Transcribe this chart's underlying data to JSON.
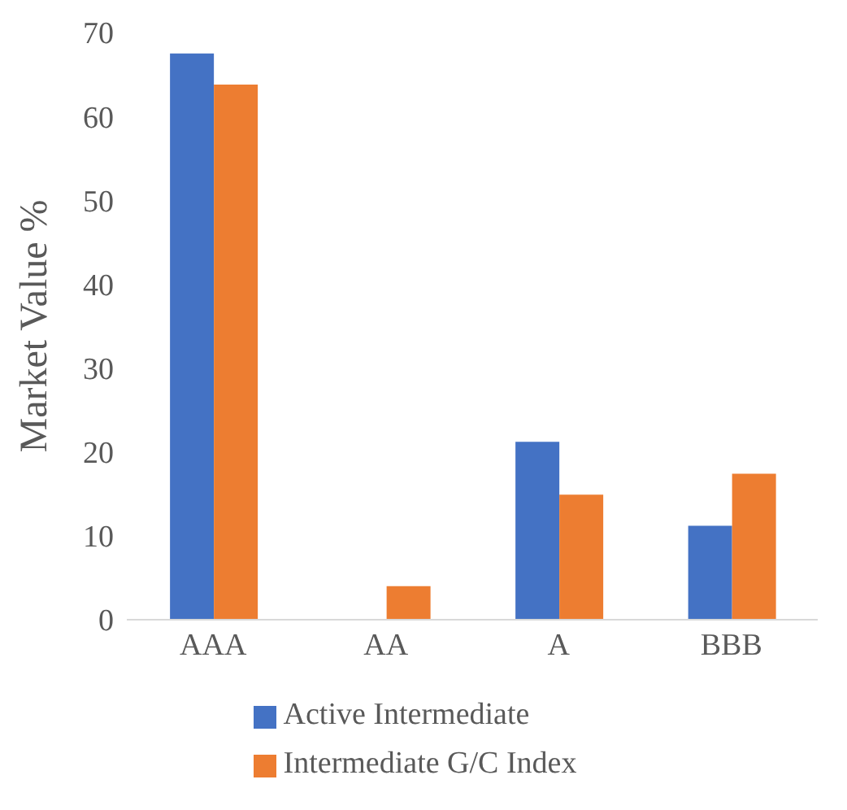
{
  "chart_data": {
    "type": "bar",
    "ylabel": "Market Value %",
    "categories": [
      "AAA",
      "AA",
      "A",
      "BBB"
    ],
    "series": [
      {
        "name": "Active Intermediate",
        "color": "#4472c4",
        "values": [
          67.5,
          0,
          21.2,
          11.2
        ]
      },
      {
        "name": "Intermediate G/C Index",
        "color": "#ed7d31",
        "values": [
          63.8,
          4,
          14.9,
          17.4
        ]
      }
    ],
    "ylim": [
      0,
      70
    ],
    "yticks": [
      0,
      10,
      20,
      30,
      40,
      50,
      60,
      70
    ],
    "grid": false,
    "legend": "bottom"
  }
}
